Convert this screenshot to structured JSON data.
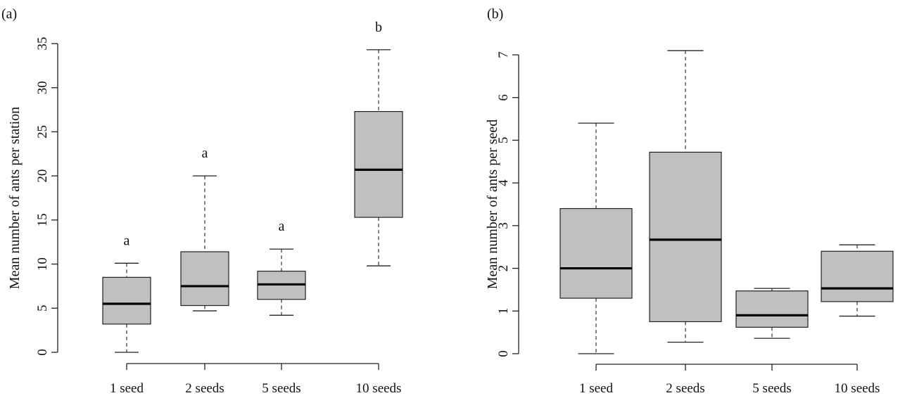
{
  "chart_data": [
    {
      "panel": "(a)",
      "type": "boxplot",
      "ylabel": "Mean number of ants per station",
      "categories": [
        "1 seed",
        "2 seeds",
        "5 seeds",
        "10 seeds"
      ],
      "ylim": [
        0,
        35
      ],
      "yticks": [
        0,
        5,
        10,
        15,
        20,
        25,
        30,
        35
      ],
      "boxes": [
        {
          "whisker_low": 0,
          "q1": 3.2,
          "median": 5.5,
          "q3": 8.5,
          "whisker_high": 10.1
        },
        {
          "whisker_low": 4.7,
          "q1": 5.3,
          "median": 7.5,
          "q3": 11.4,
          "whisker_high": 20.0
        },
        {
          "whisker_low": 4.2,
          "q1": 6.0,
          "median": 7.7,
          "q3": 9.2,
          "whisker_high": 11.7
        },
        {
          "whisker_low": 9.8,
          "q1": 15.3,
          "median": 20.7,
          "q3": 27.3,
          "whisker_high": 34.3
        }
      ],
      "annotations": [
        "a",
        "a",
        "a",
        "b"
      ],
      "box_color": "#c0c0c0"
    },
    {
      "panel": "(b)",
      "type": "boxplot",
      "ylabel": "Mean number of ants per seed",
      "categories": [
        "1 seed",
        "2 seeds",
        "5 seeds",
        "10 seeds"
      ],
      "ylim": [
        0,
        7
      ],
      "yticks": [
        0,
        1,
        2,
        3,
        4,
        5,
        6,
        7
      ],
      "boxes": [
        {
          "whisker_low": 0,
          "q1": 1.3,
          "median": 2.0,
          "q3": 3.4,
          "whisker_high": 5.4
        },
        {
          "whisker_low": 0.27,
          "q1": 0.75,
          "median": 2.67,
          "q3": 4.72,
          "whisker_high": 7.1
        },
        {
          "whisker_low": 0.36,
          "q1": 0.62,
          "median": 0.9,
          "q3": 1.47,
          "whisker_high": 1.53
        },
        {
          "whisker_low": 0.88,
          "q1": 1.22,
          "median": 1.53,
          "q3": 2.4,
          "whisker_high": 2.55
        }
      ],
      "box_color": "#c0c0c0"
    }
  ]
}
